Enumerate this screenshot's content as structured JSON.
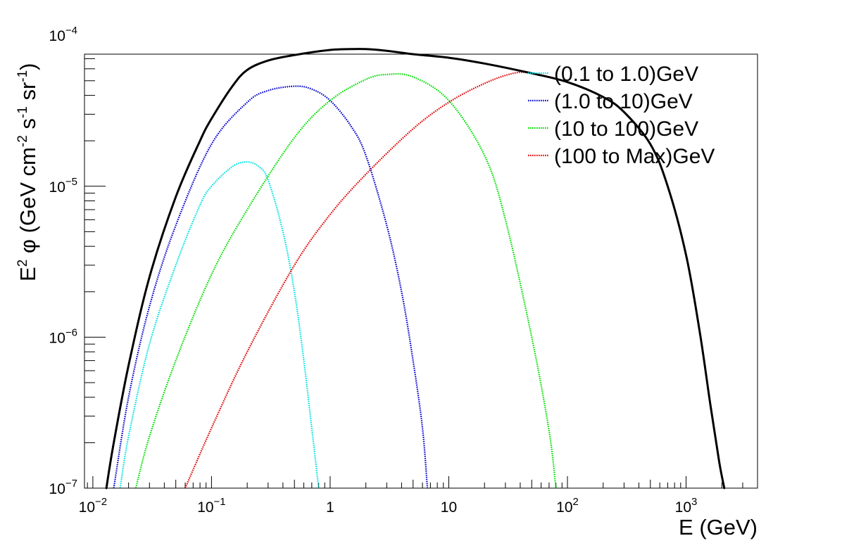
{
  "chart_data": {
    "type": "line",
    "title": "",
    "xlabel": "E (GeV)",
    "ylabel": {
      "base": "E",
      "exp": "2",
      "phi": " φ (GeV cm",
      "cm_exp": "-2",
      "s": " s",
      "s_exp": "-1",
      "sr": " sr",
      "sr_exp": "-1",
      "close": ")"
    },
    "x_scale": "log",
    "y_scale": "log",
    "xlim": [
      0.0085,
      4000
    ],
    "ylim": [
      1e-07,
      7.5e-05
    ],
    "x_ticks": [
      {
        "value": 0.01,
        "base": "10",
        "exp": "−2"
      },
      {
        "value": 0.1,
        "base": "10",
        "exp": "−1"
      },
      {
        "value": 1,
        "base": "1",
        "exp": ""
      },
      {
        "value": 10,
        "base": "10",
        "exp": ""
      },
      {
        "value": 100,
        "base": "10",
        "exp": "2"
      },
      {
        "value": 1000,
        "base": "10",
        "exp": "3"
      }
    ],
    "y_ticks": [
      {
        "value": 1e-07,
        "base": "10",
        "exp": "−7"
      },
      {
        "value": 1e-06,
        "base": "10",
        "exp": "−6"
      },
      {
        "value": 1e-05,
        "base": "10",
        "exp": "−5"
      },
      {
        "value": 0.0001,
        "base": "10",
        "exp": "−4"
      }
    ],
    "grid": false,
    "legend_position": "top-right",
    "series": [
      {
        "name": "",
        "color": "#000000",
        "style": "solid",
        "x": [
          0.013,
          0.015,
          0.02,
          0.03,
          0.05,
          0.08,
          0.1,
          0.15,
          0.2,
          0.3,
          0.5,
          1,
          1.5,
          2,
          3,
          5,
          10,
          20,
          50,
          100,
          200,
          300,
          500,
          700,
          1000,
          1300,
          1600,
          1900,
          2100
        ],
        "y": [
          1e-07,
          2e-07,
          6.5e-07,
          2.5e-06,
          8.5e-06,
          2e-05,
          2.8e-05,
          4.6e-05,
          5.9e-05,
          6.8e-05,
          7.4e-05,
          8e-05,
          8.1e-05,
          8.1e-05,
          7.9e-05,
          7.5e-05,
          7.1e-05,
          6.5e-05,
          5.6e-05,
          4.9e-05,
          3.9e-05,
          3.1e-05,
          1.9e-05,
          1e-05,
          3.5e-06,
          1.1e-06,
          3.6e-07,
          1.5e-07,
          1e-07
        ]
      },
      {
        "name": "(0.1 to 1.0)GeV",
        "color": "#00e0e0",
        "style": "dotted",
        "x": [
          0.017,
          0.02,
          0.03,
          0.05,
          0.08,
          0.1,
          0.15,
          0.2,
          0.25,
          0.3,
          0.4,
          0.5,
          0.6,
          0.7,
          0.8
        ],
        "y": [
          1e-07,
          2.2e-07,
          9e-07,
          3e-06,
          7.5e-06,
          1e-05,
          1.35e-05,
          1.45e-05,
          1.35e-05,
          1.1e-05,
          5e-06,
          2e-06,
          7e-07,
          2.5e-07,
          1e-07
        ]
      },
      {
        "name": "(1.0 to 10)GeV",
        "color": "#0000cc",
        "style": "dotted",
        "x": [
          0.015,
          0.02,
          0.03,
          0.05,
          0.1,
          0.2,
          0.3,
          0.5,
          0.7,
          1,
          1.5,
          2,
          3,
          4,
          5,
          6,
          6.6
        ],
        "y": [
          1e-07,
          4e-07,
          1.6e-06,
          5.5e-06,
          1.9e-05,
          3.6e-05,
          4.3e-05,
          4.6e-05,
          4.4e-05,
          3.7e-05,
          2.5e-05,
          1.6e-05,
          5.5e-06,
          2e-06,
          7e-07,
          2.5e-07,
          1e-07
        ]
      },
      {
        "name": "(10 to 100)GeV",
        "color": "#00dd00",
        "style": "dotted",
        "x": [
          0.023,
          0.03,
          0.05,
          0.1,
          0.2,
          0.5,
          1,
          2,
          3,
          5,
          10,
          20,
          30,
          50,
          70,
          80
        ],
        "y": [
          1e-07,
          2.2e-07,
          7e-07,
          2.6e-06,
          7e-06,
          2.1e-05,
          3.7e-05,
          5.1e-05,
          5.5e-05,
          5.3e-05,
          3.7e-05,
          1.6e-05,
          6e-06,
          1e-06,
          2.4e-07,
          1e-07
        ]
      },
      {
        "name": "(100 to Max)GeV",
        "color": "#dd0000",
        "style": "dotted",
        "x": [
          0.06,
          0.1,
          0.2,
          0.5,
          1,
          2,
          5,
          10,
          20,
          35,
          50,
          100,
          200,
          300,
          500,
          700,
          1000,
          1300,
          1600,
          1900,
          2100
        ],
        "y": [
          1e-07,
          2.5e-07,
          8e-07,
          3e-06,
          6.5e-06,
          1.2e-05,
          2.4e-05,
          3.6e-05,
          4.8e-05,
          5.6e-05,
          5.6e-05,
          4.9e-05,
          3.9e-05,
          3.1e-05,
          1.9e-05,
          1e-05,
          3.5e-06,
          1.1e-06,
          3.6e-07,
          1.5e-07,
          1e-07
        ]
      }
    ]
  }
}
